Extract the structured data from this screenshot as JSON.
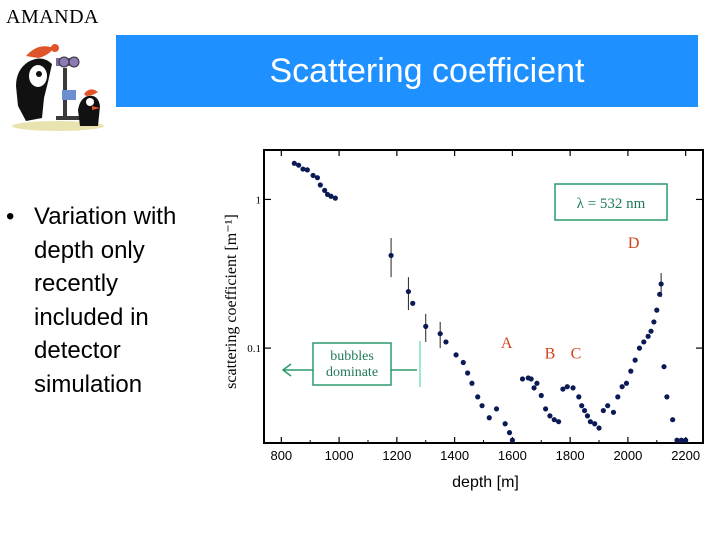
{
  "header": {
    "brand": "AMANDA",
    "title": "Scattering coefficient",
    "title_bar_color": "#1e90ff"
  },
  "mascot": {
    "icon": "penguin-mascot-icon"
  },
  "bullets": [
    {
      "text": "Variation with depth only recently included in detector simulation"
    }
  ],
  "chart_data": {
    "type": "scatter",
    "title": "",
    "xlabel": "depth [m]",
    "ylabel": "scattering coefficient [m⁻¹]",
    "xlim": [
      740,
      2260
    ],
    "ylim": [
      0.023,
      2.15
    ],
    "yscale": "log",
    "grid": false,
    "x_ticks": [
      800,
      1000,
      1200,
      1400,
      1600,
      1800,
      2000,
      2200
    ],
    "y_ticks": [
      {
        "value": 1,
        "label": "1"
      },
      {
        "value": 0.1,
        "label": "0.1"
      }
    ],
    "wavelength_label": "λ = 532 nm",
    "annotations": [
      {
        "text": "A",
        "x": 1580,
        "y": 0.1
      },
      {
        "text": "B",
        "x": 1730,
        "y": 0.085
      },
      {
        "text": "C",
        "x": 1820,
        "y": 0.085
      },
      {
        "text": "D",
        "x": 2020,
        "y": 0.47
      }
    ],
    "bubbles_callout": {
      "text": [
        "bubbles",
        "dominate"
      ],
      "x_boundary": 1280
    },
    "series": [
      {
        "points": [
          [
            845,
            1.75
          ],
          [
            860,
            1.7
          ],
          [
            875,
            1.6
          ],
          [
            890,
            1.58
          ],
          [
            910,
            1.45
          ],
          [
            925,
            1.4
          ],
          [
            935,
            1.25
          ],
          [
            950,
            1.15
          ],
          [
            960,
            1.08
          ],
          [
            972,
            1.05
          ],
          [
            987,
            1.02
          ],
          [
            1180,
            0.42
          ],
          [
            1240,
            0.24
          ],
          [
            1255,
            0.2
          ],
          [
            1300,
            0.14
          ],
          [
            1350,
            0.125
          ],
          [
            1370,
            0.11
          ],
          [
            1405,
            0.09
          ],
          [
            1430,
            0.08
          ],
          [
            1445,
            0.068
          ],
          [
            1460,
            0.058
          ],
          [
            1480,
            0.047
          ],
          [
            1495,
            0.041
          ],
          [
            1520,
            0.034
          ],
          [
            1545,
            0.039
          ],
          [
            1575,
            0.031
          ],
          [
            1590,
            0.027
          ],
          [
            1600,
            0.024
          ],
          [
            1635,
            0.062
          ],
          [
            1655,
            0.063
          ],
          [
            1665,
            0.062
          ],
          [
            1675,
            0.054
          ],
          [
            1685,
            0.058
          ],
          [
            1700,
            0.048
          ],
          [
            1715,
            0.039
          ],
          [
            1730,
            0.035
          ],
          [
            1745,
            0.033
          ],
          [
            1760,
            0.032
          ],
          [
            1775,
            0.053
          ],
          [
            1790,
            0.055
          ],
          [
            1810,
            0.054
          ],
          [
            1830,
            0.047
          ],
          [
            1840,
            0.041
          ],
          [
            1850,
            0.038
          ],
          [
            1860,
            0.035
          ],
          [
            1870,
            0.032
          ],
          [
            1885,
            0.031
          ],
          [
            1900,
            0.029
          ],
          [
            1915,
            0.038
          ],
          [
            1930,
            0.041
          ],
          [
            1950,
            0.037
          ],
          [
            1965,
            0.047
          ],
          [
            1980,
            0.055
          ],
          [
            1995,
            0.058
          ],
          [
            2010,
            0.07
          ],
          [
            2025,
            0.083
          ],
          [
            2040,
            0.1
          ],
          [
            2055,
            0.11
          ],
          [
            2070,
            0.12
          ],
          [
            2080,
            0.13
          ],
          [
            2090,
            0.15
          ],
          [
            2100,
            0.18
          ],
          [
            2110,
            0.23
          ],
          [
            2115,
            0.27
          ],
          [
            2125,
            0.075
          ],
          [
            2135,
            0.047
          ],
          [
            2155,
            0.033
          ],
          [
            2170,
            0.024
          ],
          [
            2185,
            0.024
          ],
          [
            2200,
            0.024
          ]
        ],
        "error_bars": [
          {
            "x": 1180,
            "low": 0.3,
            "high": 0.55
          },
          {
            "x": 1240,
            "low": 0.18,
            "high": 0.3
          },
          {
            "x": 1300,
            "low": 0.11,
            "high": 0.17
          },
          {
            "x": 1350,
            "low": 0.1,
            "high": 0.15
          },
          {
            "x": 2115,
            "low": 0.22,
            "high": 0.32
          }
        ]
      }
    ]
  }
}
